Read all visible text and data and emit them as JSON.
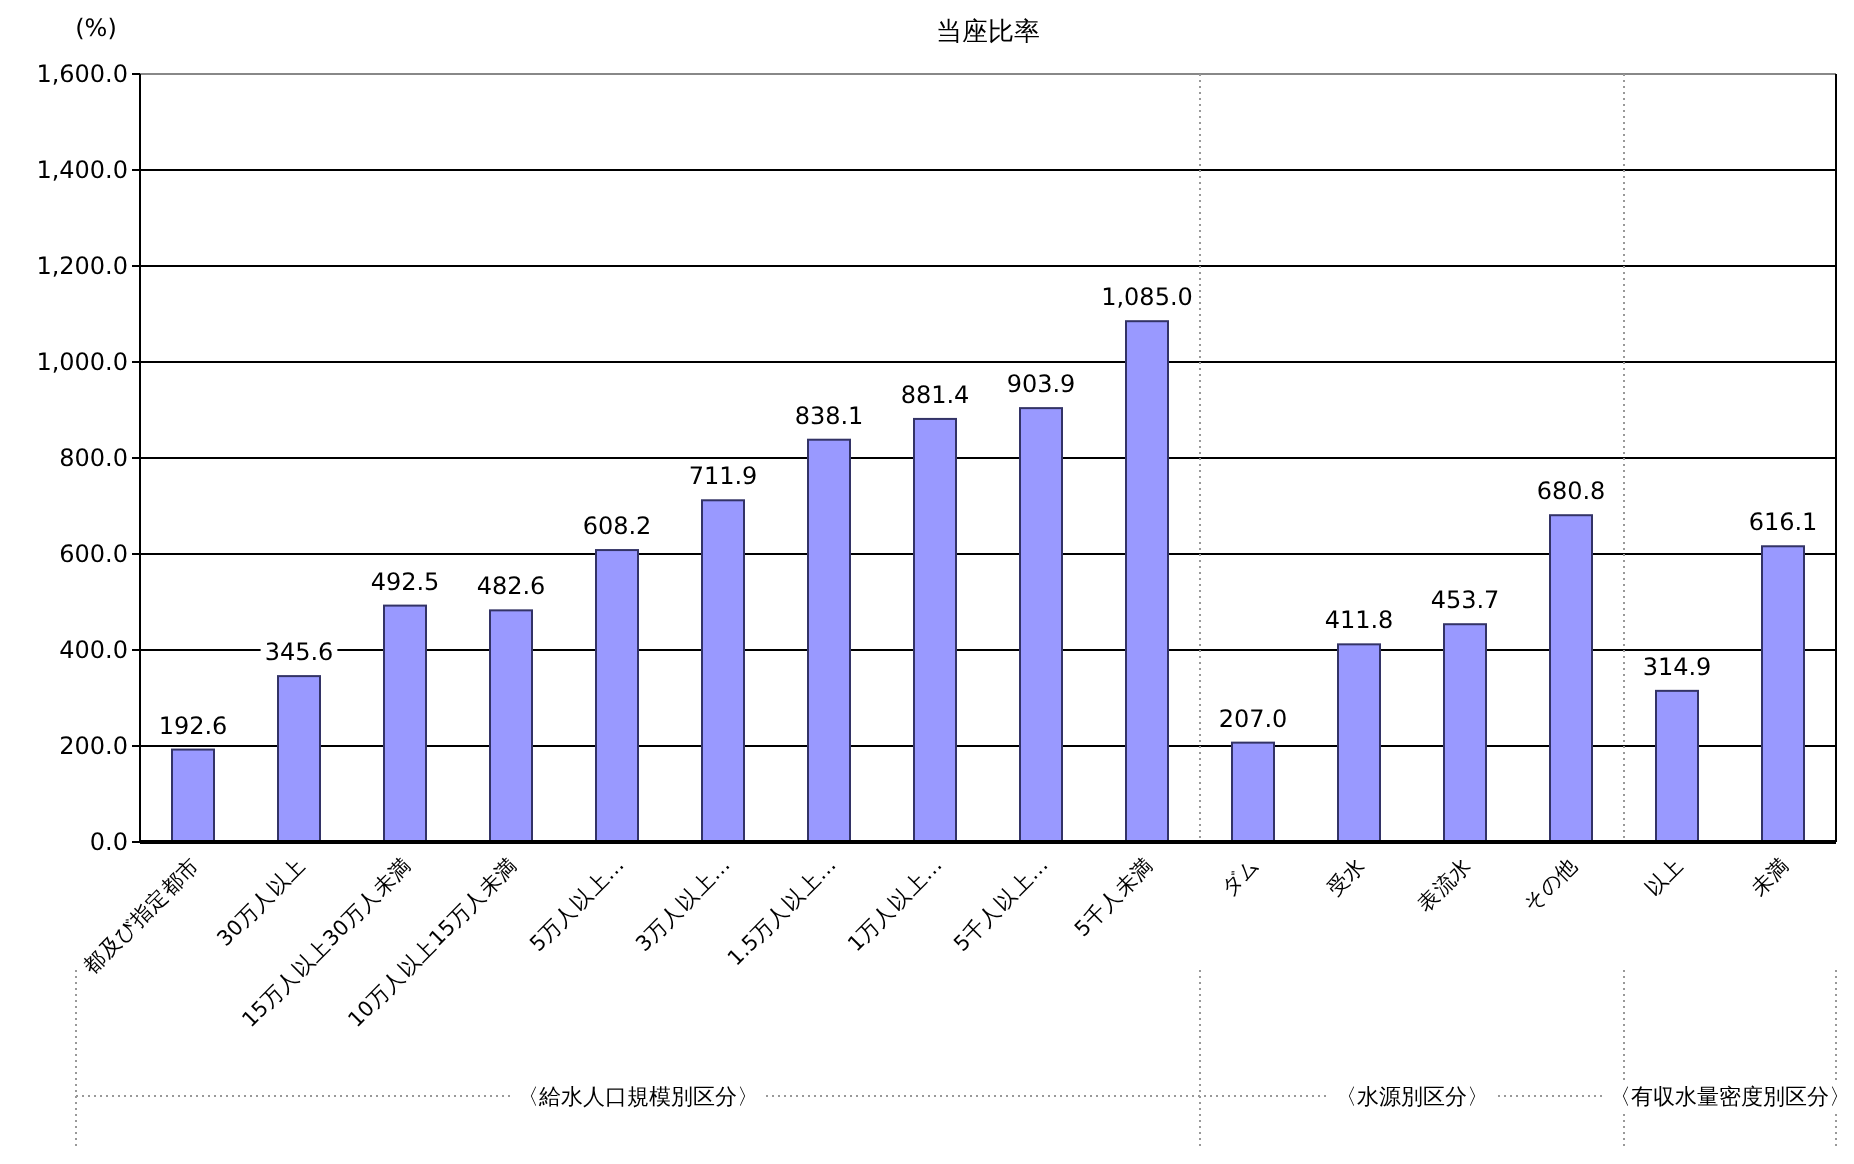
{
  "chart_data": {
    "type": "bar",
    "title": "当座比率",
    "ylabel": "(%)",
    "categories": [
      "都及び指定都市",
      "30万人以上",
      "15万人以上30万人未満",
      "10万人以上15万人未満",
      "5万人以上…",
      "3万人以上…",
      "1.5万人以上…",
      "1万人以上…",
      "5千人以上…",
      "5千人未満",
      "ダム",
      "受水",
      "表流水",
      "その他",
      "以上",
      "未満"
    ],
    "values": [
      192.6,
      345.6,
      492.5,
      482.6,
      608.2,
      711.9,
      838.1,
      881.4,
      903.9,
      1085.0,
      207.0,
      411.8,
      453.7,
      680.8,
      314.9,
      616.1
    ],
    "value_labels": [
      "192.6",
      "345.6",
      "492.5",
      "482.6",
      "608.2",
      "711.9",
      "838.1",
      "881.4",
      "903.9",
      "1,085.0",
      "207.0",
      "411.8",
      "453.7",
      "680.8",
      "314.9",
      "616.1"
    ],
    "color": "#9999ff",
    "ylim": [
      0,
      1600
    ],
    "yticks": [
      {
        "value": 0,
        "label": "0.0"
      },
      {
        "value": 200,
        "label": "200.0"
      },
      {
        "value": 400,
        "label": "400.0"
      },
      {
        "value": 600,
        "label": "600.0"
      },
      {
        "value": 800,
        "label": "800.0"
      },
      {
        "value": 1000,
        "label": "1,000.0"
      },
      {
        "value": 1200,
        "label": "1,200.0"
      },
      {
        "value": 1400,
        "label": "1,400.0"
      },
      {
        "value": 1600,
        "label": "1,600.0"
      }
    ],
    "grid": "y",
    "annotations": [
      "〈給水人口規模別区分〉",
      "〈水源別区分〉",
      "〈有収水量密度別区分〉"
    ]
  }
}
